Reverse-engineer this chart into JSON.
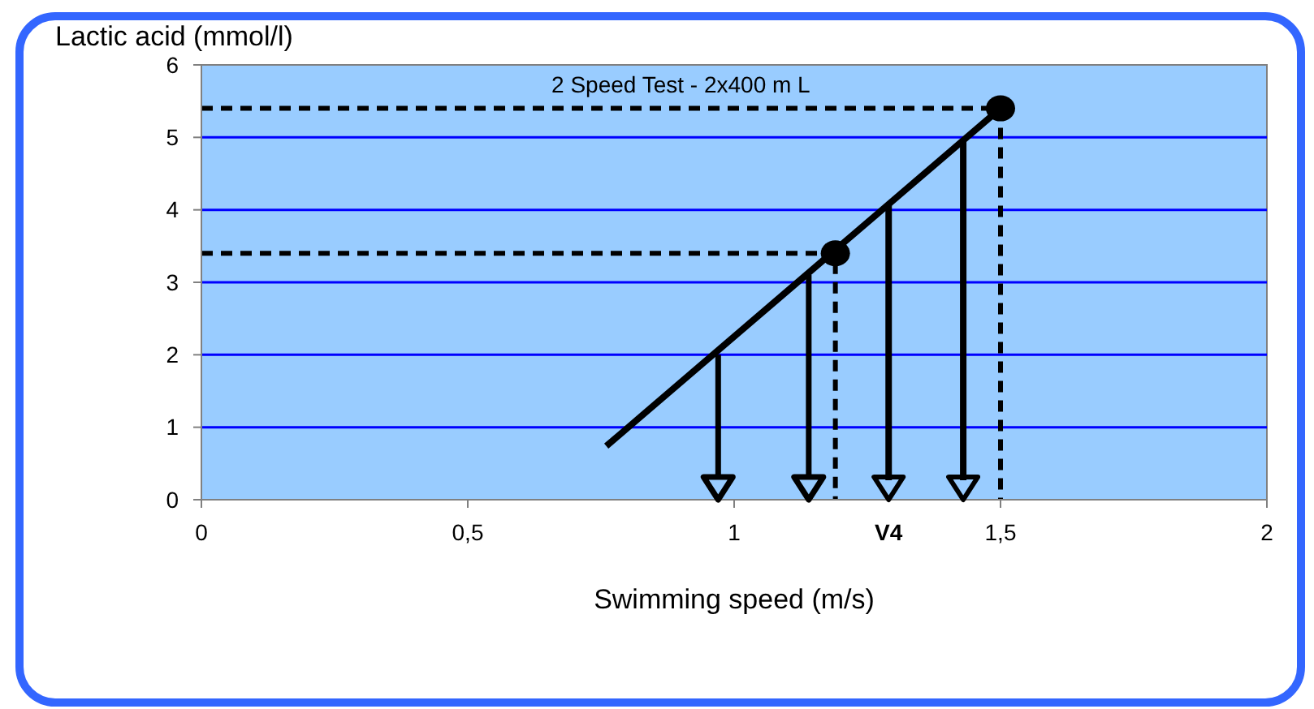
{
  "chart_data": {
    "type": "line",
    "title": "2 Speed Test - 2x400 m L",
    "xlabel": "Swimming speed (m/s)",
    "ylabel": "Lactic acid (mmol/l)",
    "xlim": [
      0,
      2
    ],
    "ylim": [
      0,
      6
    ],
    "xticks": [
      0,
      {
        "value": 0.5,
        "label": "0,5"
      },
      1,
      {
        "value": 1.5,
        "label": "1,5"
      },
      2
    ],
    "yticks": [
      0,
      1,
      2,
      3,
      4,
      5,
      6
    ],
    "grid": "y",
    "series": [
      {
        "type": "line",
        "color": "#000000",
        "x": [
          0.76,
          1.5
        ],
        "values": [
          0.74,
          5.4
        ],
        "line_style": "solid",
        "marker": "none"
      },
      {
        "color": "#000000",
        "x": [
          0,
          1.19,
          1.19
        ],
        "values": [
          3.4,
          3.4,
          0
        ],
        "line_style": "dashed"
      },
      {
        "color": "#000000",
        "x": [
          0,
          1.5,
          1.5
        ],
        "values": [
          5.4,
          5.4,
          0
        ],
        "line_style": "dashed"
      },
      {
        "type": "scatter",
        "color": "#000000",
        "x": [
          1.19,
          1.5
        ],
        "values": [
          3.4,
          5.4
        ],
        "marker": "circle"
      }
    ],
    "ref_lines": [
      {
        "axis": "x",
        "value": 1.29,
        "label": "V4",
        "color": "#000000"
      },
      {
        "axis": "x",
        "value": 1.43,
        "color": "#000000"
      }
    ]
  }
}
